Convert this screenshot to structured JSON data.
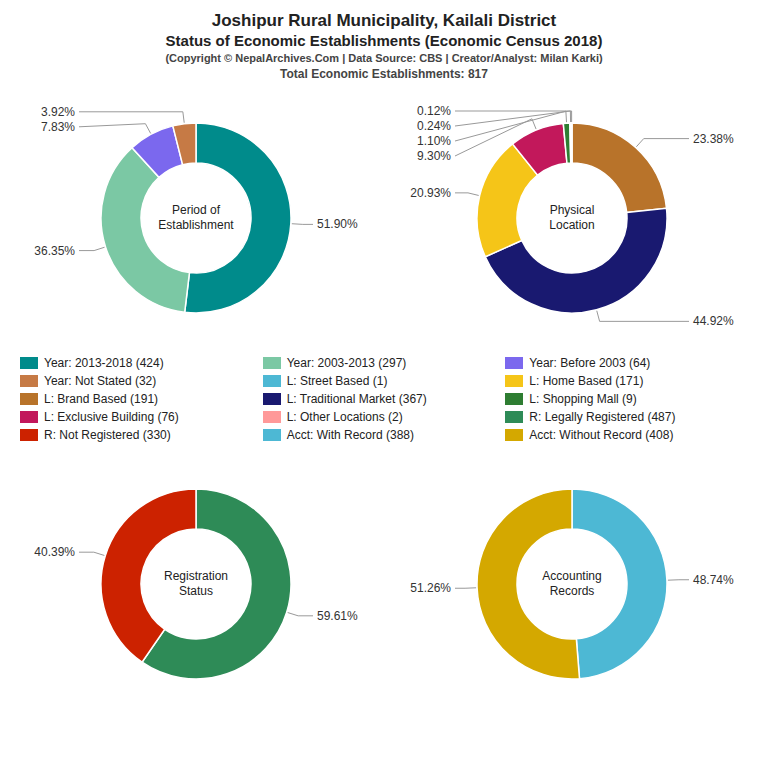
{
  "title": "Joshipur Rural Municipality, Kailali District",
  "subtitle": "Status of Economic Establishments (Economic Census 2018)",
  "annotations": [
    "(Copyright © NepalArchives.Com | Data Source: CBS | Creator/Analyst: Milan Karki)",
    "Total Economic Establishments: 817"
  ],
  "legend_items": [
    {
      "label": "Year: 2013-2018 (424)",
      "color": "#008B8B"
    },
    {
      "label": "Year: 2003-2013 (297)",
      "color": "#7BC8A4"
    },
    {
      "label": "Year: Before 2003 (64)",
      "color": "#7B68EE"
    },
    {
      "label": "Year: Not Stated (32)",
      "color": "#C67A45"
    },
    {
      "label": "L: Street Based (1)",
      "color": "#4DB8D4"
    },
    {
      "label": "L: Home Based (171)",
      "color": "#F5C518"
    },
    {
      "label": "L: Brand Based (191)",
      "color": "#B8732A"
    },
    {
      "label": "L: Traditional Market (367)",
      "color": "#191970"
    },
    {
      "label": "L: Shopping Mall (9)",
      "color": "#2E7D32"
    },
    {
      "label": "L: Exclusive Building (76)",
      "color": "#C2185B"
    },
    {
      "label": "L: Other Locations (2)",
      "color": "#FF9999"
    },
    {
      "label": "R: Legally Registered (487)",
      "color": "#2E8B57"
    },
    {
      "label": "R: Not Registered (330)",
      "color": "#CC2200"
    },
    {
      "label": "Acct: With Record (388)",
      "color": "#4DB8D4"
    },
    {
      "label": "Acct: Without Record (408)",
      "color": "#D4A800"
    }
  ],
  "chart_data": [
    {
      "type": "pie",
      "title": "Period of\nEstablishment",
      "values": [
        51.9,
        36.35,
        7.83,
        3.92
      ],
      "value_labels": [
        "51.90%",
        "36.35%",
        "7.83%",
        "3.92%"
      ],
      "colors": [
        "#008B8B",
        "#7BC8A4",
        "#7B68EE",
        "#C67A45"
      ],
      "data_labels": true
    },
    {
      "type": "pie",
      "title": "Physical\nLocation",
      "values": [
        23.38,
        44.92,
        20.93,
        9.3,
        1.1,
        0.24,
        0.12
      ],
      "value_labels": [
        "23.38%",
        "44.92%",
        "20.93%",
        "9.30%",
        "1.10%",
        "0.24%",
        "0.12%"
      ],
      "colors": [
        "#B8732A",
        "#191970",
        "#F5C518",
        "#C2185B",
        "#2E7D32",
        "#FF9999",
        "#4DB8D4"
      ],
      "data_labels": true
    },
    {
      "type": "pie",
      "title": "Registration\nStatus",
      "values": [
        59.61,
        40.39
      ],
      "value_labels": [
        "59.61%",
        "40.39%"
      ],
      "colors": [
        "#2E8B57",
        "#CC2200"
      ],
      "data_labels": true
    },
    {
      "type": "pie",
      "title": "Accounting\nRecords",
      "values": [
        48.74,
        51.26
      ],
      "value_labels": [
        "48.74%",
        "51.26%"
      ],
      "colors": [
        "#4DB8D4",
        "#D4A800"
      ],
      "data_labels": true
    }
  ]
}
